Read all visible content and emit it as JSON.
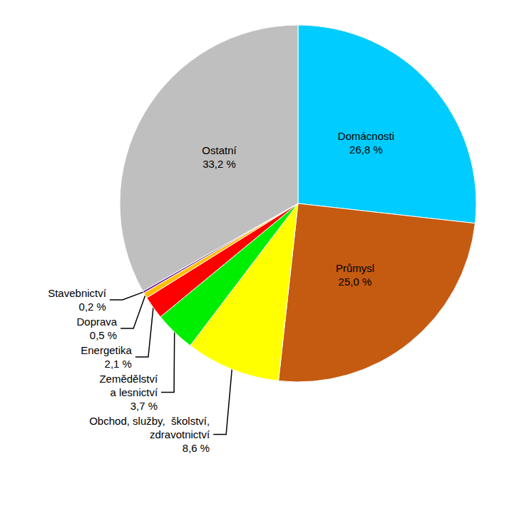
{
  "chart_data": {
    "type": "pie",
    "categories": [
      "Domácnosti",
      "Průmysl",
      "Obchod, služby,  školství,\nzdravotnictví",
      "Zemědělství\na lesnictví",
      "Energetika",
      "Doprava",
      "Stavebnictví",
      "Ostatní"
    ],
    "values": [
      26.8,
      25.0,
      8.6,
      3.7,
      2.1,
      0.5,
      0.2,
      33.2
    ],
    "value_labels": [
      "26,8 %",
      "25,0 %",
      "8,6 %",
      "3,7 %",
      "2,1 %",
      "0,5 %",
      "0,2 %",
      "33,2 %"
    ],
    "colors": [
      "#00ccff",
      "#c55a11",
      "#ffff00",
      "#00ee00",
      "#ff0000",
      "#ffc000",
      "#7030a0",
      "#bfbfbf"
    ],
    "data_labels": true
  }
}
